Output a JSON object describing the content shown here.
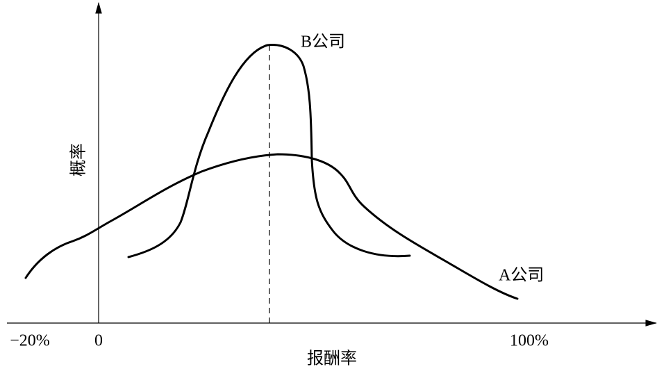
{
  "curves": {
    "a_label": "A公司",
    "b_label": "B公司"
  },
  "axes": {
    "y_label": "概率",
    "x_label": "报酬率",
    "x_ticks": [
      "−20%",
      "0",
      "100%"
    ]
  }
}
